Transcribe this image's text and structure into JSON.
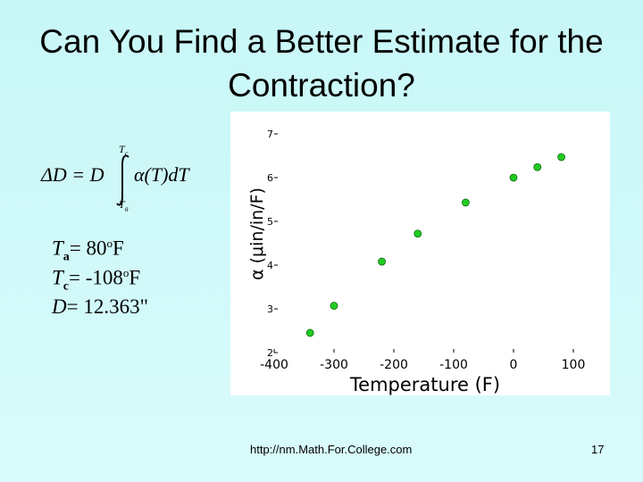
{
  "slide": {
    "title": "Can You Find a Better Estimate for the Contraction?",
    "formula": {
      "lhs": "ΔD = D",
      "integrand": "α(T)dT",
      "upper_limit": {
        "symbol": "T",
        "sub": "c"
      },
      "lower_limit": {
        "symbol": "T",
        "sub": "a"
      }
    },
    "parameters": [
      {
        "symbol": "T",
        "sub": "a",
        "text": "= 80",
        "sup": "o",
        "unit": "F"
      },
      {
        "symbol": "T",
        "sub": "c",
        "text": "= -108",
        "sup": "o",
        "unit": "F"
      },
      {
        "symbol": "D",
        "text": "= 12.363\""
      }
    ],
    "footer": "http://nm.Math.For.College.com",
    "page_number": "17"
  },
  "chart_data": {
    "type": "scatter",
    "x_label": "Temperature (F)",
    "y_label": "α (μin/in/F)",
    "x": [
      -340,
      -300,
      -220,
      -160,
      -80,
      0,
      40,
      80
    ],
    "values": [
      2.45,
      3.07,
      4.08,
      4.72,
      5.43,
      6.0,
      6.24,
      6.47
    ],
    "color": "#22cc22",
    "xlim": [
      -400,
      100
    ],
    "xticks": [
      -400,
      -300,
      -200,
      -100,
      0,
      100
    ],
    "ylim": [
      2,
      7
    ],
    "yticks": [
      2,
      3,
      4,
      5,
      6,
      7
    ]
  }
}
